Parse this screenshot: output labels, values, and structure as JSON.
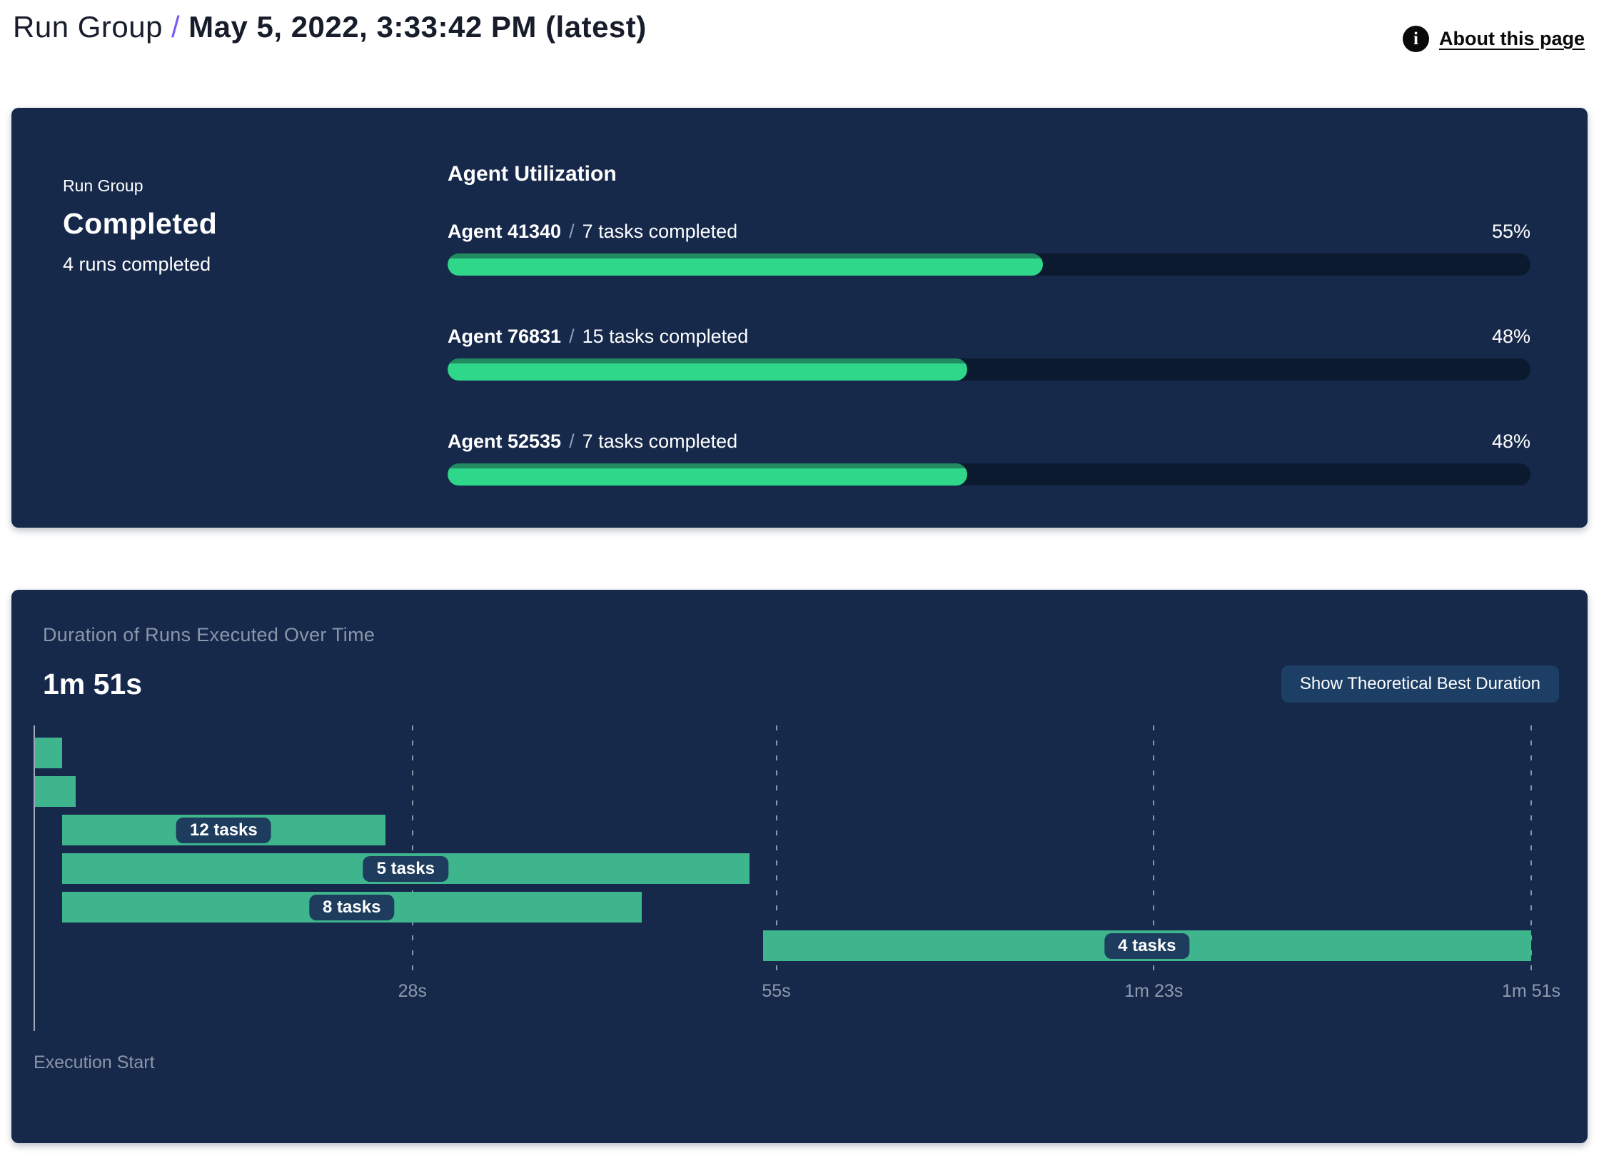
{
  "colors": {
    "panel_bg": "#16294b",
    "track_bg": "#0c1a2f",
    "progress_green": "#2ed789",
    "progress_green_dark": "#218a60",
    "gantt_green": "#3eb58d",
    "chip_bg": "#1d3c5e",
    "muted_text": "#8b96a9",
    "accent_purple": "#7b5cf0",
    "button_bg": "#1d3f66"
  },
  "header": {
    "breadcrumb_root": "Run Group",
    "separator": "/",
    "title": "May 5, 2022, 3:33:42 PM (latest)",
    "about": {
      "label": "About this page",
      "icon": "info-icon",
      "icon_glyph": "i"
    }
  },
  "run_summary": {
    "label": "Run Group",
    "status": "Completed",
    "detail": "4 runs completed"
  },
  "agent_utilization": {
    "title": "Agent Utilization",
    "separator": "/",
    "agents": [
      {
        "name": "Agent 41340",
        "tasks": "7 tasks completed",
        "percent": 55,
        "percent_label": "55%"
      },
      {
        "name": "Agent 76831",
        "tasks": "15 tasks completed",
        "percent": 48,
        "percent_label": "48%"
      },
      {
        "name": "Agent 52535",
        "tasks": "7 tasks completed",
        "percent": 48,
        "percent_label": "48%"
      }
    ]
  },
  "duration_chart": {
    "title": "Duration of Runs Executed Over Time",
    "total_duration": "1m 51s",
    "button_label": "Show Theoretical Best Duration",
    "axis_label": "Execution Start",
    "total_seconds": 111,
    "ticks": [
      {
        "label": "28s",
        "seconds": 28
      },
      {
        "label": "55s",
        "seconds": 55
      },
      {
        "label": "1m 23s",
        "seconds": 83
      },
      {
        "label": "1m 51s",
        "seconds": 111
      }
    ],
    "bars": [
      {
        "label": "",
        "start_s": 0,
        "end_s": 2
      },
      {
        "label": "",
        "start_s": 0,
        "end_s": 3
      },
      {
        "label": "12 tasks",
        "start_s": 2,
        "end_s": 26
      },
      {
        "label": "5 tasks",
        "start_s": 2,
        "end_s": 53
      },
      {
        "label": "8 tasks",
        "start_s": 2,
        "end_s": 45
      },
      {
        "label": "4 tasks",
        "start_s": 54,
        "end_s": 111
      }
    ]
  },
  "chart_data": [
    {
      "type": "bar",
      "title": "Agent Utilization",
      "categories": [
        "Agent 41340",
        "Agent 76831",
        "Agent 52535"
      ],
      "values": [
        55,
        48,
        48
      ],
      "value_unit": "percent",
      "annotations": [
        "7 tasks completed",
        "15 tasks completed",
        "7 tasks completed"
      ],
      "xlim": [
        0,
        100
      ],
      "orientation": "horizontal",
      "grid": false,
      "legend": "none"
    },
    {
      "type": "bar",
      "subtype": "gantt",
      "title": "Duration of Runs Executed Over Time",
      "total_duration_label": "1m 51s",
      "xlabel": "Execution Start",
      "x_tick_labels": [
        "28s",
        "55s",
        "1m 23s",
        "1m 51s"
      ],
      "x_tick_seconds": [
        28,
        55,
        83,
        111
      ],
      "xlim_seconds": [
        0,
        111
      ],
      "grid": "dashed-vertical",
      "series": [
        {
          "name": "run-1",
          "label": "",
          "start_s": 0,
          "end_s": 2
        },
        {
          "name": "run-2",
          "label": "",
          "start_s": 0,
          "end_s": 3
        },
        {
          "name": "run-3",
          "label": "12 tasks",
          "start_s": 2,
          "end_s": 26
        },
        {
          "name": "run-4",
          "label": "5 tasks",
          "start_s": 2,
          "end_s": 53
        },
        {
          "name": "run-5",
          "label": "8 tasks",
          "start_s": 2,
          "end_s": 45
        },
        {
          "name": "run-6",
          "label": "4 tasks",
          "start_s": 54,
          "end_s": 111
        }
      ]
    }
  ]
}
